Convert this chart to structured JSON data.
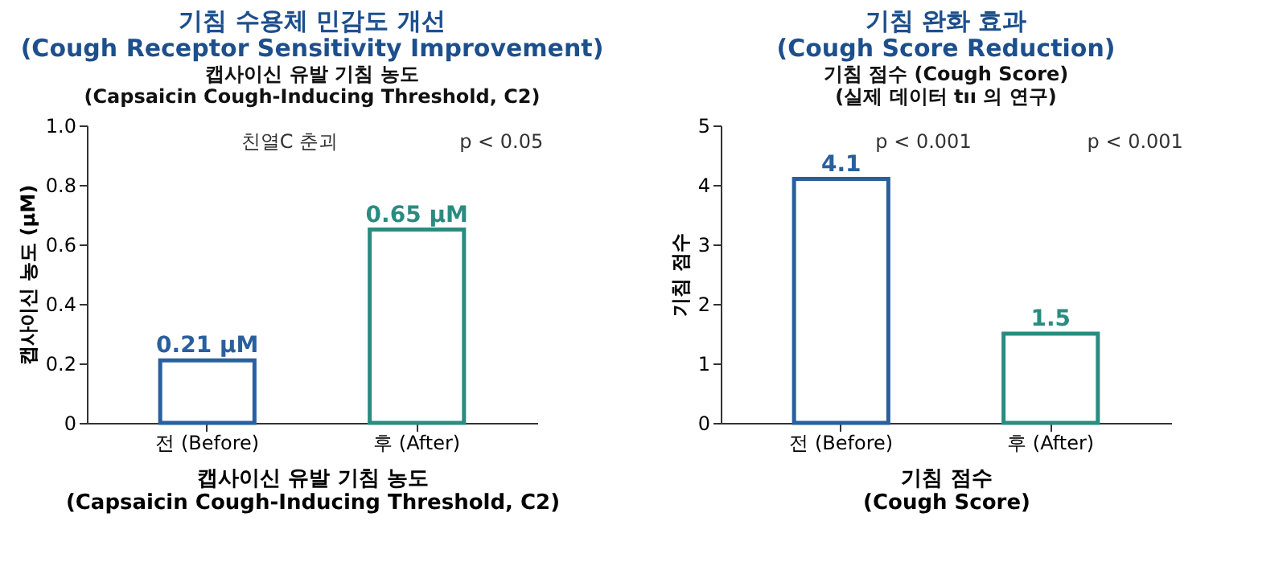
{
  "chart_data": [
    {
      "type": "bar",
      "title": "기침 수용체 민감도 개선\n(Cough Receptor Sensitivity Improvement)",
      "subtitle": "캡사이신 유발 기침 농도\n(Capsaicin Cough-Inducing Threshold, C2)",
      "xlabel": "캡사이신 유발 기침 농도\n(Capsaicin Cough-Inducing Threshold, C2)",
      "ylabel": "캡사이신 농도 (μM)",
      "categories": [
        "전 (Before)",
        "후 (After)"
      ],
      "values": [
        0.21,
        0.65
      ],
      "colors": [
        "#2a5f9e",
        "#2a8c80"
      ],
      "value_labels": [
        "0.21 μM",
        "0.65 μM"
      ],
      "ylim": [
        0,
        1
      ],
      "yticks": [
        0,
        0.2,
        0.4,
        0.6,
        0.8,
        {
          "value": 1,
          "label": "1.0"
        }
      ],
      "grid": false,
      "annotations": [
        "친열C 춘괴",
        "p < 0.05"
      ]
    },
    {
      "type": "bar",
      "title": "기침 완화 효과\n(Cough Score Reduction)",
      "subtitle": "기침 점수 (Cough Score)\n(실제 데이터 tıı 의 연구)",
      "xlabel": "기침 점수\n(Cough Score)",
      "ylabel": "기침 점수",
      "categories": [
        "전 (Before)",
        "후 (After)"
      ],
      "values": [
        4.1,
        1.5
      ],
      "colors": [
        "#2a5f9e",
        "#2a8c80"
      ],
      "data_labels": true,
      "ylim": [
        0,
        5
      ],
      "yticks": [
        0,
        1,
        2,
        3,
        4,
        5
      ],
      "grid": false,
      "annotations": [
        "p < 0.001",
        "p < 0.001"
      ]
    }
  ]
}
